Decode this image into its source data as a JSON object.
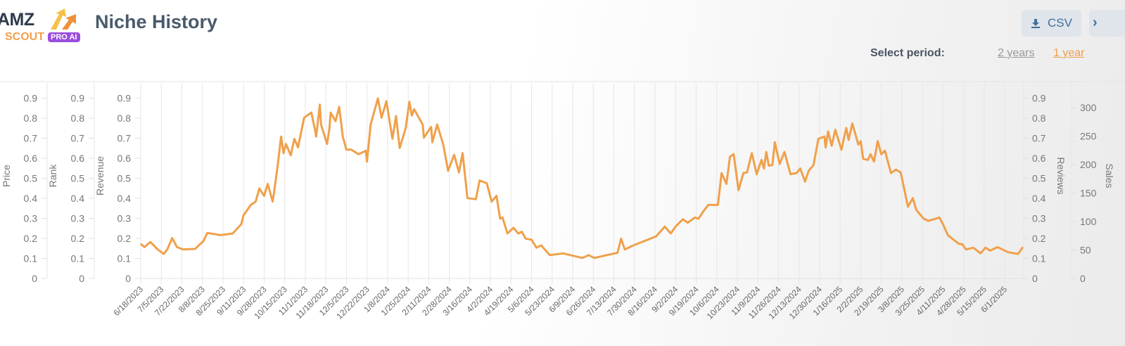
{
  "header": {
    "logo": {
      "line1": "AMZ",
      "line2": "SCOUT",
      "badge": "PRO AI"
    },
    "title": "Niche History",
    "csv_button": "CSV",
    "next_button": "›",
    "select_period_label": "Select period:",
    "periods": [
      {
        "label": "2 years",
        "active": false
      },
      {
        "label": "1 year",
        "active": true
      }
    ]
  },
  "colors": {
    "line": "#f0a04b",
    "accent": "#f0a04b",
    "title": "#4a5a6b"
  },
  "chart_data": {
    "type": "line",
    "grid": "vertical",
    "legend": "none",
    "axes": {
      "left": [
        {
          "label": "Price",
          "ticks": [
            "0",
            "0.1",
            "0.2",
            "0.3",
            "0.4",
            "0.5",
            "0.6",
            "0.7",
            "0.8",
            "0.9"
          ]
        },
        {
          "label": "Rank",
          "ticks": [
            "0",
            "0.1",
            "0.2",
            "0.3",
            "0.4",
            "0.5",
            "0.6",
            "0.7",
            "0.8",
            "0.9"
          ]
        },
        {
          "label": "Revenue",
          "ticks": [
            "0",
            "0.1",
            "0.2",
            "0.3",
            "0.4",
            "0.5",
            "0.6",
            "0.7",
            "0.8",
            "0.9"
          ]
        }
      ],
      "right": [
        {
          "label": "Reviews",
          "ticks": [
            "0",
            "0.1",
            "0.2",
            "0.3",
            "0.4",
            "0.5",
            "0.6",
            "0.7",
            "0.8",
            "0.9"
          ]
        },
        {
          "label": "Sales",
          "ticks": [
            "0",
            "50",
            "100",
            "150",
            "200",
            "250",
            "300"
          ]
        }
      ]
    },
    "x_ticks": [
      "6/18/2023",
      "7/5/2023",
      "7/22/2023",
      "8/8/2023",
      "8/25/2023",
      "9/11/2023",
      "9/28/2023",
      "10/15/2023",
      "11/1/2023",
      "11/18/2023",
      "12/5/2023",
      "12/22/2023",
      "1/8/2024",
      "1/25/2024",
      "2/11/2024",
      "2/28/2024",
      "3/16/2024",
      "4/2/2024",
      "4/19/2024",
      "5/6/2024",
      "5/23/2024",
      "6/9/2024",
      "6/26/2024",
      "7/13/2024",
      "7/30/2024",
      "8/16/2024",
      "9/2/2024",
      "9/19/2024",
      "10/6/2024",
      "10/23/2024",
      "11/9/2024",
      "11/26/2024",
      "12/13/2024",
      "12/30/2024",
      "1/16/2025",
      "2/2/2025",
      "2/19/2025",
      "3/8/2025",
      "3/25/2025",
      "4/11/2025",
      "4/28/2025",
      "5/15/2025",
      "6/1/2025"
    ],
    "ylim_sales": [
      0,
      343
    ],
    "series": [
      {
        "axis": "Sales",
        "points": [
          [
            "6/18/2023",
            61
          ],
          [
            "6/21/2023",
            55
          ],
          [
            "6/26/2023",
            64
          ],
          [
            "7/2/2023",
            51
          ],
          [
            "7/7/2023",
            43
          ],
          [
            "7/10/2023",
            51
          ],
          [
            "7/14/2023",
            71
          ],
          [
            "7/18/2023",
            55
          ],
          [
            "7/23/2023",
            51
          ],
          [
            "8/2/2023",
            52
          ],
          [
            "8/9/2023",
            66
          ],
          [
            "8/12/2023",
            80
          ],
          [
            "8/23/2023",
            76
          ],
          [
            "9/2/2023",
            79
          ],
          [
            "9/9/2023",
            95
          ],
          [
            "9/11/2023",
            111
          ],
          [
            "9/17/2023",
            129
          ],
          [
            "9/21/2023",
            135
          ],
          [
            "9/24/2023",
            158
          ],
          [
            "9/28/2023",
            145
          ],
          [
            "10/1/2023",
            166
          ],
          [
            "10/5/2023",
            135
          ],
          [
            "10/6/2023",
            148
          ],
          [
            "10/9/2023",
            195
          ],
          [
            "10/12/2023",
            249
          ],
          [
            "10/14/2023",
            220
          ],
          [
            "10/16/2023",
            236
          ],
          [
            "10/20/2023",
            216
          ],
          [
            "10/23/2023",
            245
          ],
          [
            "10/26/2023",
            230
          ],
          [
            "10/31/2023",
            282
          ],
          [
            "11/6/2023",
            291
          ],
          [
            "11/9/2023",
            261
          ],
          [
            "11/10/2023",
            249
          ],
          [
            "11/13/2023",
            305
          ],
          [
            "11/14/2023",
            270
          ],
          [
            "11/19/2023",
            236
          ],
          [
            "11/21/2023",
            264
          ],
          [
            "11/22/2023",
            291
          ],
          [
            "11/26/2023",
            276
          ],
          [
            "11/29/2023",
            301
          ],
          [
            "12/2/2023",
            249
          ],
          [
            "12/5/2023",
            226
          ],
          [
            "12/9/2023",
            226
          ],
          [
            "12/15/2023",
            218
          ],
          [
            "12/21/2023",
            224
          ],
          [
            "12/22/2023",
            205
          ],
          [
            "12/25/2023",
            270
          ],
          [
            "12/31/2023",
            316
          ],
          [
            "1/3/2024",
            282
          ],
          [
            "1/7/2024",
            311
          ],
          [
            "1/12/2024",
            245
          ],
          [
            "1/15/2024",
            285
          ],
          [
            "1/18/2024",
            229
          ],
          [
            "1/23/2024",
            264
          ],
          [
            "1/26/2024",
            310
          ],
          [
            "1/28/2024",
            286
          ],
          [
            "1/30/2024",
            297
          ],
          [
            "2/6/2024",
            270
          ],
          [
            "2/7/2024",
            247
          ],
          [
            "2/13/2024",
            266
          ],
          [
            "2/14/2024",
            239
          ],
          [
            "2/18/2024",
            270
          ],
          [
            "2/23/2024",
            235
          ],
          [
            "2/27/2024",
            189
          ],
          [
            "3/3/2024",
            217
          ],
          [
            "3/7/2024",
            186
          ],
          [
            "3/10/2024",
            220
          ],
          [
            "3/14/2024",
            141
          ],
          [
            "3/21/2024",
            139
          ],
          [
            "3/24/2024",
            172
          ],
          [
            "3/30/2024",
            167
          ],
          [
            "4/3/2024",
            135
          ],
          [
            "4/7/2024",
            145
          ],
          [
            "4/10/2024",
            105
          ],
          [
            "4/12/2024",
            107
          ],
          [
            "4/16/2024",
            79
          ],
          [
            "4/21/2024",
            89
          ],
          [
            "4/25/2024",
            79
          ],
          [
            "4/28/2024",
            82
          ],
          [
            "5/1/2024",
            70
          ],
          [
            "5/6/2024",
            68
          ],
          [
            "5/10/2024",
            54
          ],
          [
            "5/14/2024",
            58
          ],
          [
            "5/21/2024",
            41
          ],
          [
            "6/1/2024",
            44
          ],
          [
            "6/17/2024",
            36
          ],
          [
            "6/22/2024",
            41
          ],
          [
            "6/27/2024",
            36
          ],
          [
            "7/7/2024",
            41
          ],
          [
            "7/16/2024",
            45
          ],
          [
            "7/19/2024",
            70
          ],
          [
            "7/22/2024",
            51
          ],
          [
            "7/29/2024",
            58
          ],
          [
            "8/10/2024",
            68
          ],
          [
            "8/17/2024",
            74
          ],
          [
            "8/24/2024",
            91
          ],
          [
            "8/29/2024",
            79
          ],
          [
            "9/2/2024",
            91
          ],
          [
            "9/8/2024",
            104
          ],
          [
            "9/12/2024",
            98
          ],
          [
            "9/18/2024",
            107
          ],
          [
            "9/21/2024",
            105
          ],
          [
            "9/25/2024",
            118
          ],
          [
            "9/29/2024",
            129
          ],
          [
            "10/7/2024",
            129
          ],
          [
            "10/10/2024",
            185
          ],
          [
            "10/14/2024",
            166
          ],
          [
            "10/17/2024",
            214
          ],
          [
            "10/20/2024",
            218
          ],
          [
            "10/24/2024",
            155
          ],
          [
            "10/28/2024",
            185
          ],
          [
            "10/31/2024",
            186
          ],
          [
            "11/4/2024",
            220
          ],
          [
            "11/8/2024",
            183
          ],
          [
            "11/12/2024",
            208
          ],
          [
            "11/14/2024",
            193
          ],
          [
            "11/16/2024",
            222
          ],
          [
            "11/18/2024",
            198
          ],
          [
            "11/21/2024",
            199
          ],
          [
            "11/23/2024",
            239
          ],
          [
            "11/27/2024",
            201
          ],
          [
            "12/1/2024",
            222
          ],
          [
            "12/6/2024",
            183
          ],
          [
            "12/11/2024",
            185
          ],
          [
            "12/14/2024",
            193
          ],
          [
            "12/18/2024",
            170
          ],
          [
            "12/21/2024",
            189
          ],
          [
            "12/25/2024",
            199
          ],
          [
            "12/29/2024",
            245
          ],
          [
            "1/3/2025",
            249
          ],
          [
            "1/4/2025",
            230
          ],
          [
            "1/6/2025",
            258
          ],
          [
            "1/9/2025",
            233
          ],
          [
            "1/12/2025",
            261
          ],
          [
            "1/17/2025",
            226
          ],
          [
            "1/21/2025",
            264
          ],
          [
            "1/23/2025",
            243
          ],
          [
            "1/26/2025",
            272
          ],
          [
            "1/31/2025",
            235
          ],
          [
            "2/2/2025",
            241
          ],
          [
            "2/4/2025",
            210
          ],
          [
            "2/8/2025",
            208
          ],
          [
            "2/10/2025",
            218
          ],
          [
            "2/13/2025",
            205
          ],
          [
            "2/16/2025",
            241
          ],
          [
            "2/19/2025",
            218
          ],
          [
            "2/22/2025",
            224
          ],
          [
            "2/27/2025",
            185
          ],
          [
            "3/3/2025",
            191
          ],
          [
            "3/7/2025",
            186
          ],
          [
            "3/13/2025",
            126
          ],
          [
            "3/17/2025",
            141
          ],
          [
            "3/20/2025",
            120
          ],
          [
            "3/26/2025",
            105
          ],
          [
            "3/30/2025",
            101
          ],
          [
            "4/8/2025",
            107
          ],
          [
            "4/11/2025",
            95
          ],
          [
            "4/15/2025",
            76
          ],
          [
            "4/24/2025",
            61
          ],
          [
            "4/27/2025",
            60
          ],
          [
            "4/30/2025",
            51
          ],
          [
            "5/6/2025",
            54
          ],
          [
            "5/12/2025",
            44
          ],
          [
            "5/16/2025",
            54
          ],
          [
            "5/20/2025",
            49
          ],
          [
            "5/26/2025",
            55
          ],
          [
            "6/1/2025",
            49
          ],
          [
            "6/4/2025",
            46
          ],
          [
            "6/12/2025",
            43
          ],
          [
            "6/16/2025",
            55
          ]
        ]
      }
    ]
  }
}
